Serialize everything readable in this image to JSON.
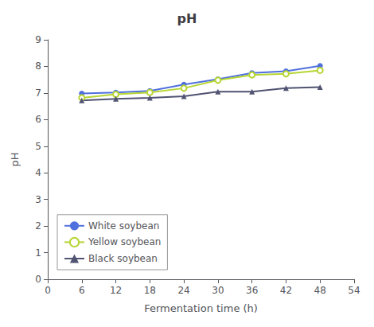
{
  "chart_data": {
    "type": "line",
    "title": "pH",
    "x_label": "Fermentation time (h)",
    "y_label": "pH",
    "x": [
      6,
      12,
      18,
      24,
      30,
      36,
      42,
      48
    ],
    "series": [
      {
        "name": "White soybean",
        "marker": "circle",
        "values": [
          6.98,
          7.02,
          7.08,
          7.32,
          7.52,
          7.75,
          7.82,
          8.02
        ]
      },
      {
        "name": "Yellow soybean",
        "marker": "open_circle",
        "values": [
          6.82,
          6.95,
          7.02,
          7.18,
          7.48,
          7.68,
          7.72,
          7.85
        ]
      },
      {
        "name": "Black soybean",
        "marker": "triangle",
        "values": [
          6.72,
          6.78,
          6.82,
          6.88,
          7.05,
          7.05,
          7.18,
          7.22
        ]
      }
    ],
    "xlim": [
      0,
      54
    ],
    "ylim": [
      0,
      9
    ],
    "xticks": [
      0,
      6,
      12,
      18,
      24,
      30,
      36,
      42,
      48,
      54
    ],
    "yticks": [
      0,
      1,
      2,
      3,
      4,
      5,
      6,
      7,
      8,
      9
    ],
    "grid": false,
    "legend": "lower left"
  }
}
